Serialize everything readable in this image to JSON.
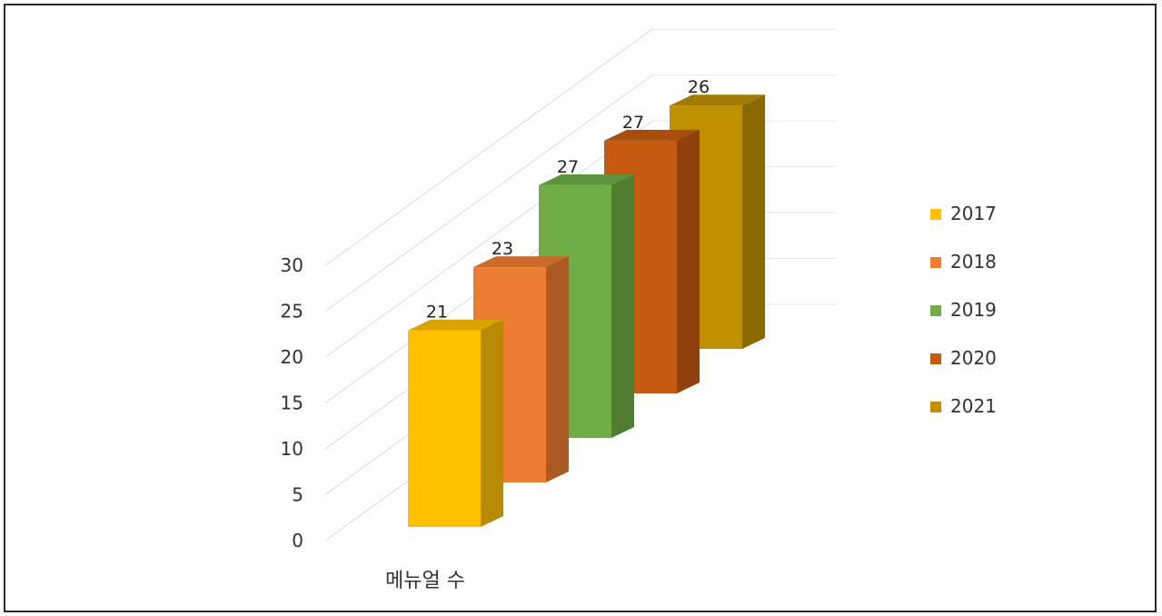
{
  "chart_data": {
    "type": "bar",
    "categories": [
      "메뉴얼 수"
    ],
    "series": [
      {
        "name": "2017",
        "values": [
          21
        ],
        "color": "#FFC000"
      },
      {
        "name": "2018",
        "values": [
          23
        ],
        "color": "#ED7D31"
      },
      {
        "name": "2019",
        "values": [
          27
        ],
        "color": "#70AD47"
      },
      {
        "name": "2020",
        "values": [
          27
        ],
        "color": "#C55A11"
      },
      {
        "name": "2021",
        "values": [
          26
        ],
        "color": "#BF9000"
      }
    ],
    "title": "",
    "xlabel": "",
    "ylabel": "",
    "ylim": [
      0,
      30
    ],
    "yticks": [
      "0",
      "5",
      "10",
      "15",
      "20",
      "25",
      "30"
    ],
    "three_d": true,
    "data_labels": true,
    "grid": true,
    "legend_position": "right"
  }
}
